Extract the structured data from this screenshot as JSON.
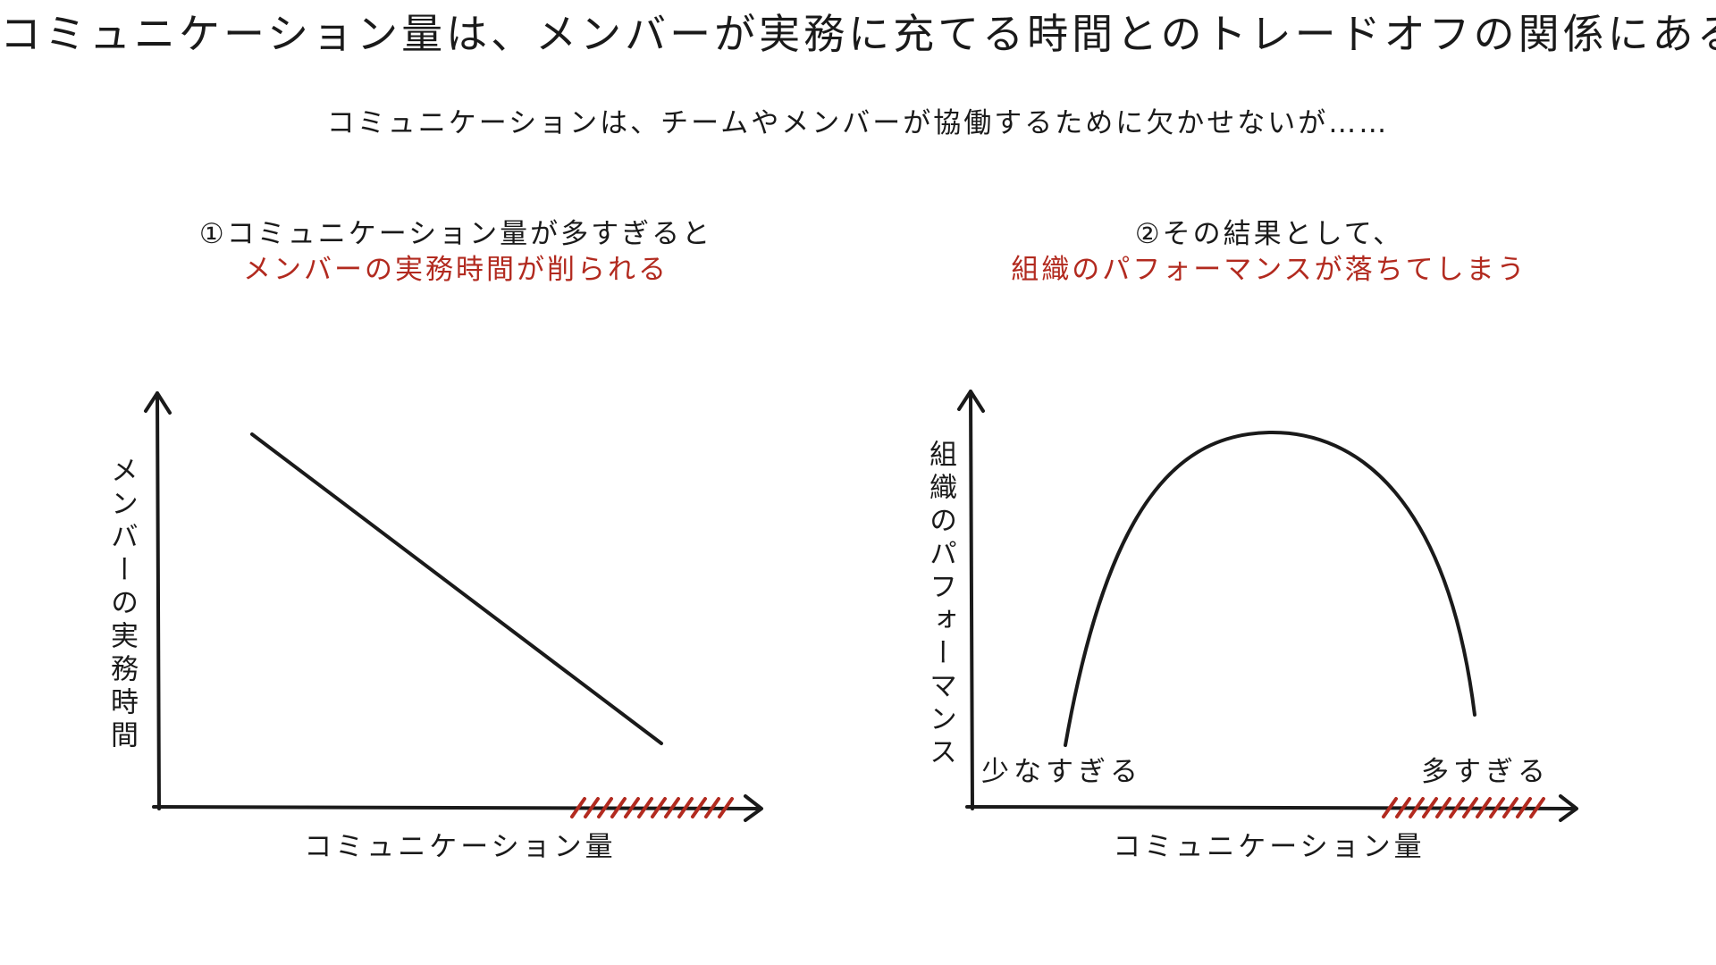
{
  "headline": "コミュニケーション量は、メンバーが実務に充てる時間とのトレードオフの関係にある",
  "subheadline": "コミュニケーションは、チームやメンバーが協働するために欠かせないが……",
  "left_panel": {
    "caption_line1": "①コミュニケーション量が多すぎると",
    "caption_line2": "メンバーの実務時間が削られる",
    "ylabel": "メンバーの実務時間",
    "xlabel": "コミュニケーション量"
  },
  "right_panel": {
    "caption_line1": "②その結果として、",
    "caption_line2": "組織のパフォーマンスが落ちてしまう",
    "ylabel": "組織のパフォーマンス",
    "xlabel": "コミュニケーション量",
    "label_low": "少なすぎる",
    "label_high": "多すぎる"
  },
  "colors": {
    "ink": "#1a1a1a",
    "accent": "#b22a1f"
  }
}
